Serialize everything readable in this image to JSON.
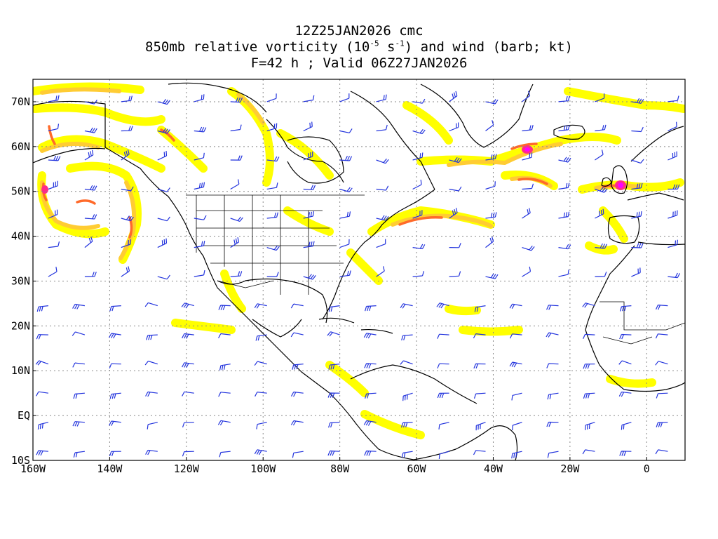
{
  "title": {
    "line1": "12Z25JAN2026 cmc",
    "line2_pre": "850mb relative vorticity (10",
    "line2_exp1": "-5",
    "line2_mid": " s",
    "line2_exp2": "-1",
    "line2_post": ") and wind (barb; kt)",
    "line3": "F=42 h ; Valid 06Z27JAN2026"
  },
  "map": {
    "lon_range": [
      -160,
      10
    ],
    "lat_range": [
      -10,
      75
    ],
    "lon_ticks": [
      "160W",
      "140W",
      "120W",
      "100W",
      "80W",
      "60W",
      "40W",
      "20W",
      "0"
    ],
    "lon_tick_values": [
      -160,
      -140,
      -120,
      -100,
      -80,
      -60,
      -40,
      -20,
      0
    ],
    "lat_ticks": [
      "70N",
      "60N",
      "50N",
      "40N",
      "30N",
      "20N",
      "10N",
      "EQ",
      "10S"
    ],
    "lat_tick_values": [
      70,
      60,
      50,
      40,
      30,
      20,
      10,
      0,
      -10
    ],
    "grid_lines": "dotted",
    "colors": {
      "contour_low": "#ffff00",
      "contour_mid": "#ffcc33",
      "contour_high": "#ff6a2a",
      "contour_peak": "#ff2a8a",
      "contour_max": "#ff00ff",
      "coastline": "#000000",
      "wind_barb": "#2233dd"
    }
  }
}
